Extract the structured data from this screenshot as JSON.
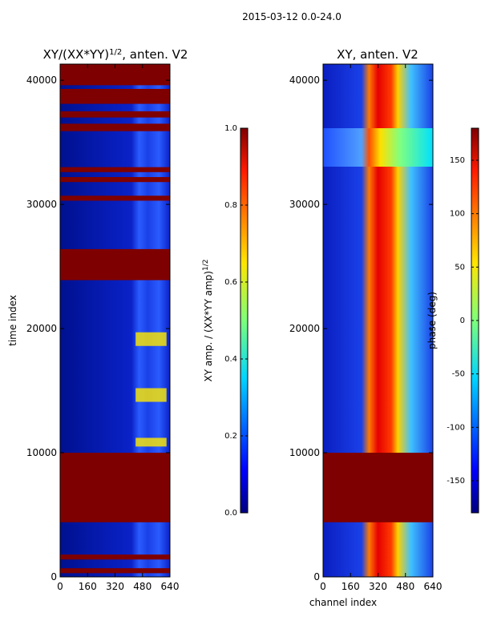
{
  "suptitle": "2015-03-12 0.0-24.0",
  "chart_data": [
    {
      "type": "heatmap",
      "title": "XY/(XX*YY)^(1/2), anten. V2",
      "title_main": "XY/(XX*YY)",
      "title_exp": "1/2",
      "title_tail": ", anten. V2",
      "xlabel": "",
      "ylabel": "time index",
      "xlim": [
        0,
        640
      ],
      "ylim": [
        0,
        41300
      ],
      "xticks": [
        0,
        160,
        320,
        480,
        640
      ],
      "yticks": [
        0,
        10000,
        20000,
        30000,
        40000
      ],
      "colorbar": {
        "label": "XY amp. / (XX*YY amp)^(1/2)",
        "label_main": "XY amp. / (XX*YY amp)",
        "label_exp": "1/2",
        "range": [
          0.0,
          1.0
        ],
        "ticks": [
          "0.0",
          "0.2",
          "0.4",
          "0.6",
          "0.8",
          "1.0"
        ],
        "tick_values": [
          0.0,
          0.2,
          0.4,
          0.6,
          0.8,
          1.0
        ]
      },
      "saturated_time_bands": [
        [
          300,
          700
        ],
        [
          1400,
          1800
        ],
        [
          4400,
          10000
        ],
        [
          23900,
          26400
        ],
        [
          30300,
          30700
        ],
        [
          31800,
          32200
        ],
        [
          32600,
          33000
        ],
        [
          35900,
          36500
        ],
        [
          37000,
          37500
        ],
        [
          38100,
          39300
        ],
        [
          39600,
          41300
        ]
      ],
      "bright_patches": [
        {
          "channels": [
            440,
            620
          ],
          "times": [
            10500,
            11200
          ]
        },
        {
          "channels": [
            440,
            620
          ],
          "times": [
            14100,
            15200
          ]
        },
        {
          "channels": [
            440,
            620
          ],
          "times": [
            18600,
            19700
          ]
        }
      ]
    },
    {
      "type": "heatmap",
      "title": "XY, anten. V2",
      "xlabel": "channel index",
      "ylabel": "",
      "xlim": [
        0,
        640
      ],
      "ylim": [
        0,
        41300
      ],
      "xticks": [
        0,
        160,
        320,
        480,
        640
      ],
      "yticks": [
        0,
        10000,
        20000,
        30000,
        40000
      ],
      "colorbar": {
        "label": "phase (deg)",
        "range": [
          -180,
          180
        ],
        "ticks": [
          "-150",
          "-100",
          "-50",
          "0",
          "50",
          "100",
          "150"
        ],
        "tick_values": [
          -150,
          -100,
          -50,
          0,
          50,
          100,
          150
        ]
      },
      "saturated_time_bands": [
        [
          4400,
          10000
        ]
      ],
      "phase_ridge_channels": [
        300,
        440
      ]
    }
  ],
  "colors": {
    "low": "#00007f",
    "mid_low": "#0a2fd8",
    "mid": "#7dff7a",
    "high": "#f5e20a",
    "saturated": "#7f0000"
  }
}
